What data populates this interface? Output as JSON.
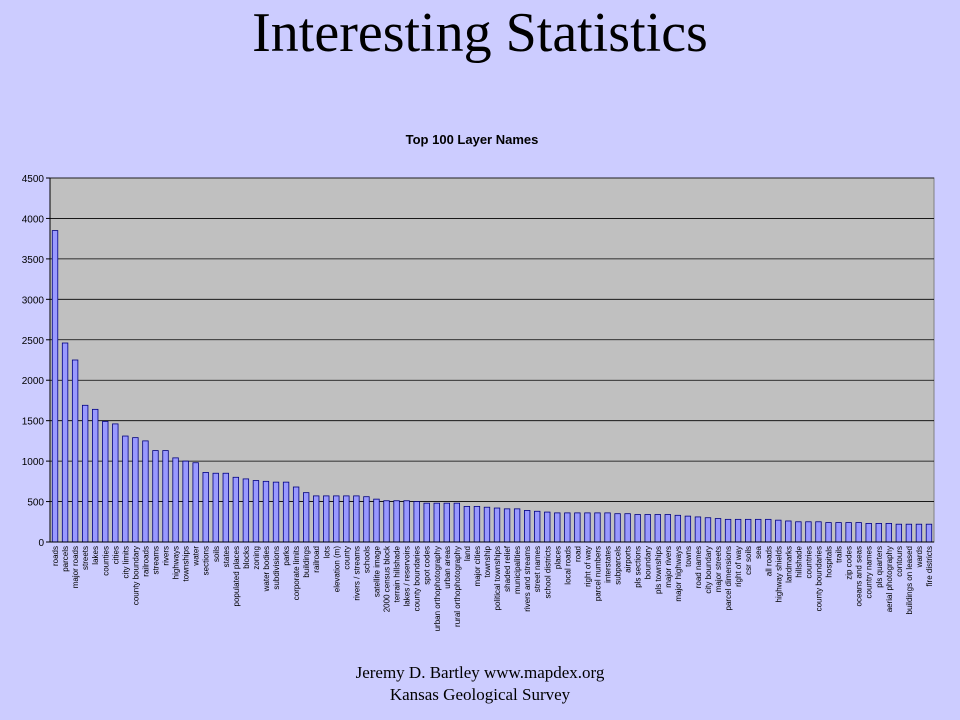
{
  "slide": {
    "title": "Interesting Statistics",
    "footer_line1": "Jeremy D. Bartley  www.mapdex.org",
    "footer_line2": "Kansas Geological Survey"
  },
  "colors": {
    "background": "#ccccff",
    "plot_area": "#c0c0c0",
    "bar_fill": "#9999ff",
    "bar_stroke": "#000080"
  },
  "chart_data": {
    "type": "bar",
    "title": "Top 100 Layer Names",
    "xlabel": "",
    "ylabel": "",
    "ylim": [
      0,
      4500
    ],
    "yticks": [
      0,
      500,
      1000,
      1500,
      2000,
      2500,
      3000,
      3500,
      4000,
      4500
    ],
    "grid": true,
    "legend": "none",
    "categories": [
      "roads",
      "parcels",
      "major roads",
      "streets",
      "lakes",
      "counties",
      "cities",
      "city limits",
      "county boundary",
      "railroads",
      "streams",
      "rivers",
      "highways",
      "townships",
      "water",
      "sections",
      "soils",
      "states",
      "populated places",
      "blocks",
      "zoning",
      "water bodies",
      "subdivisions",
      "parks",
      "corporate limits",
      "buildings",
      "railroad",
      "lots",
      "elevation (m)",
      "county",
      "rivers / streams",
      "schools",
      "satellite image",
      "2000 census block",
      "terrain hillshade",
      "lakes / reservoirs",
      "county boundaries",
      "spot codes",
      "urban orthophotography",
      "urban areas",
      "rural orthophotography",
      "land",
      "major cities",
      "township",
      "political townships",
      "shaded relief",
      "municipalities",
      "rivers and streams",
      "street names",
      "school districts",
      "places",
      "local roads",
      "road",
      "right of way",
      "parcel numbers",
      "interstates",
      "subparcels",
      "airports",
      "pls sections",
      "boundary",
      "pls townships",
      "major rivers",
      "major highways",
      "towns",
      "road names",
      "city boundary",
      "major streets",
      "parcel dimensions",
      "right of way",
      "csr soils",
      "sea",
      "all roads",
      "highway shields",
      "landmarks",
      "hillshade",
      "countries",
      "county boundaries",
      "hospitals",
      "trails",
      "zip codes",
      "oceans and seas",
      "country names",
      "pls quarters",
      "aerial photography",
      "contours",
      "buildings on leased",
      "wards",
      "fire districts"
    ],
    "values": [
      3850,
      2460,
      2250,
      1690,
      1640,
      1490,
      1460,
      1310,
      1290,
      1250,
      1130,
      1130,
      1040,
      1000,
      980,
      860,
      850,
      850,
      800,
      780,
      760,
      750,
      740,
      740,
      680,
      610,
      570,
      570,
      570,
      570,
      570,
      560,
      530,
      510,
      510,
      510,
      500,
      480,
      480,
      480,
      480,
      440,
      440,
      430,
      420,
      410,
      410,
      390,
      380,
      370,
      360,
      360,
      360,
      360,
      360,
      360,
      350,
      350,
      340,
      340,
      340,
      340,
      330,
      320,
      310,
      300,
      290,
      280,
      280,
      280,
      280,
      280,
      270,
      260,
      250,
      250,
      250,
      240,
      240,
      240,
      240,
      230,
      230,
      230,
      220,
      220,
      220,
      220
    ]
  }
}
